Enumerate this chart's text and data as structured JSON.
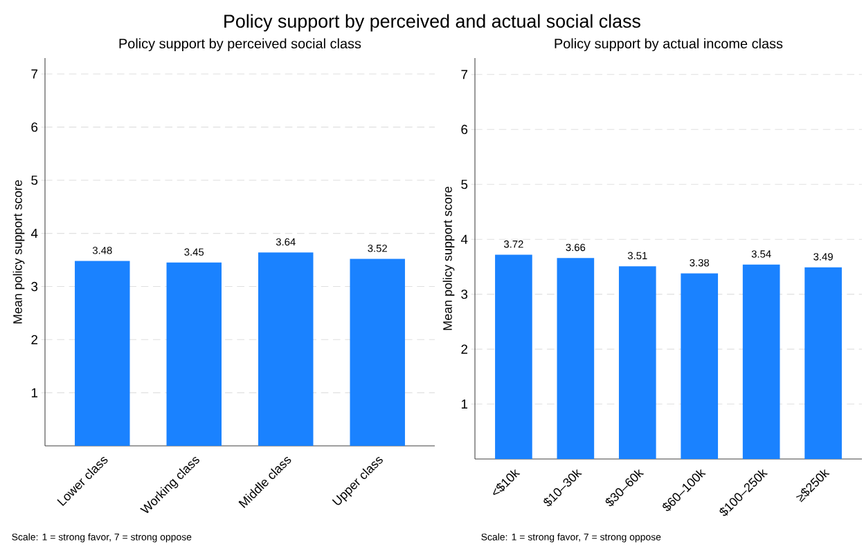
{
  "chart_data": [
    {
      "type": "other",
      "title": "Policy support by perceived and actual social class"
    },
    {
      "type": "bar",
      "title": "Policy support by perceived social class",
      "ylabel": "Mean policy support score",
      "categories": [
        "Lower class",
        "Working class",
        "Middle class",
        "Upper class"
      ],
      "values": [
        3.48,
        3.45,
        3.64,
        3.52
      ],
      "color": "#1a82ff",
      "ylim": [
        0,
        7.3
      ],
      "yticks": [
        1,
        2,
        3,
        4,
        5,
        6,
        7
      ],
      "grid": "y",
      "data_labels": true,
      "annotations": [
        "Scale: 1 = strong favor, 7 = strong oppose"
      ]
    },
    {
      "type": "bar",
      "title": "Policy support by actual income class",
      "ylabel": "Mean policy support score",
      "categories": [
        "<$10k",
        "$10–30k",
        "$30–60k",
        "$60–100k",
        "$100–250k",
        "≥$250k"
      ],
      "values": [
        3.72,
        3.66,
        3.51,
        3.38,
        3.54,
        3.49
      ],
      "color": "#1a82ff",
      "ylim": [
        0,
        7.3
      ],
      "yticks": [
        1,
        2,
        3,
        4,
        5,
        6,
        7
      ],
      "grid": "y",
      "data_labels": true,
      "annotations": [
        "Scale: 1 = strong favor, 7 = strong oppose"
      ]
    }
  ]
}
